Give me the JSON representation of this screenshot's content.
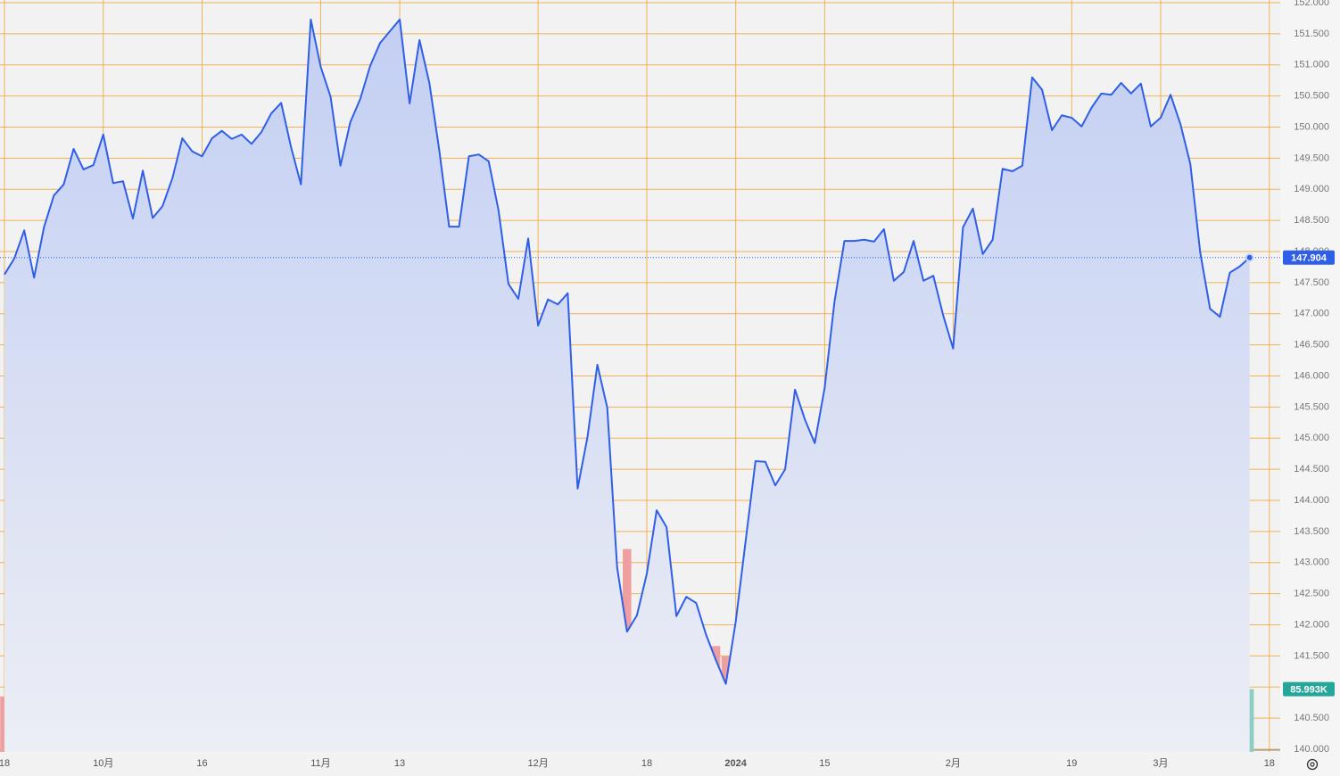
{
  "chart_data": {
    "type": "line",
    "color": "#2f5fe6",
    "grid": true,
    "grid_color": "#f0a73a",
    "x": [
      0,
      1,
      2,
      3,
      4,
      5,
      6,
      7,
      8,
      9,
      10,
      11,
      12,
      13,
      14,
      15,
      16,
      17,
      18,
      19,
      20,
      21,
      22,
      23,
      24,
      25,
      26,
      27,
      28,
      29,
      30,
      31,
      32,
      33,
      34,
      35,
      36,
      37,
      38,
      39,
      40,
      41,
      42,
      43,
      44,
      45,
      46,
      47,
      48,
      49,
      50,
      51,
      52,
      53,
      54,
      55,
      56,
      57,
      58,
      59,
      60,
      61,
      62,
      63,
      64,
      65,
      66,
      67,
      68,
      69,
      70,
      71,
      72,
      73,
      74,
      75,
      76,
      77,
      78,
      79,
      80,
      81,
      82,
      83,
      84,
      85,
      86,
      87,
      88,
      89,
      90,
      91,
      92,
      93,
      94,
      95,
      96,
      97,
      98,
      99,
      100,
      101,
      102,
      103,
      104,
      105,
      106,
      107,
      108,
      109,
      110,
      111,
      112,
      113,
      114,
      115,
      116,
      117,
      118,
      119,
      120,
      121,
      122,
      123,
      124,
      125,
      126
    ],
    "values": [
      147.63,
      147.89,
      148.34,
      147.58,
      148.39,
      148.9,
      149.08,
      149.65,
      149.32,
      149.39,
      149.88,
      149.1,
      149.13,
      148.53,
      149.3,
      148.54,
      148.73,
      149.18,
      149.82,
      149.61,
      149.53,
      149.82,
      149.94,
      149.81,
      149.88,
      149.73,
      149.92,
      150.22,
      150.39,
      149.68,
      149.08,
      151.73,
      150.97,
      150.49,
      149.38,
      150.08,
      150.45,
      150.98,
      151.35,
      151.54,
      151.73,
      150.38,
      151.4,
      150.71,
      149.63,
      148.4,
      148.4,
      149.53,
      149.56,
      149.45,
      148.66,
      147.48,
      147.24,
      148.21,
      146.81,
      147.23,
      147.15,
      147.33,
      144.19,
      145.02,
      146.18,
      145.49,
      142.92,
      141.89,
      142.15,
      142.82,
      143.84,
      143.57,
      142.14,
      142.45,
      142.35,
      141.84,
      141.43,
      141.05,
      142.05,
      143.34,
      144.63,
      144.62,
      144.24,
      144.5,
      145.78,
      145.3,
      144.92,
      145.81,
      147.2,
      148.17,
      148.17,
      148.19,
      148.16,
      148.36,
      147.53,
      147.67,
      148.17,
      147.53,
      147.61,
      146.97,
      146.44,
      148.39,
      148.69,
      147.96,
      148.19,
      149.33,
      149.29,
      149.38,
      150.8,
      150.6,
      149.95,
      150.19,
      150.15,
      150.01,
      150.31,
      150.54,
      150.52,
      150.71,
      150.54,
      150.7,
      150.01,
      150.15,
      150.52,
      150.05,
      149.41,
      147.99,
      147.08,
      146.95,
      147.66,
      147.76,
      147.904
    ],
    "xlim": [
      -0.45,
      129.1
    ],
    "xticks": [
      {
        "value": 0,
        "label": "18"
      },
      {
        "value": 10,
        "label": "10月"
      },
      {
        "value": 20,
        "label": "16"
      },
      {
        "value": 32,
        "label": "11月"
      },
      {
        "value": 40,
        "label": "13"
      },
      {
        "value": 54,
        "label": "12月"
      },
      {
        "value": 65,
        "label": "18"
      },
      {
        "value": 74,
        "label": "2024"
      },
      {
        "value": 83,
        "label": "15"
      },
      {
        "value": 96,
        "label": "2月"
      },
      {
        "value": 108,
        "label": "19"
      },
      {
        "value": 117,
        "label": "3月"
      },
      {
        "value": 128,
        "label": "18"
      }
    ],
    "ylim": [
      139.957,
      152.043
    ],
    "yticks": [
      {
        "value": 140,
        "label": "140.000"
      },
      {
        "value": 140.5,
        "label": "140.500"
      },
      {
        "value": 141,
        "label": "141.000"
      },
      {
        "value": 141.5,
        "label": "141.500"
      },
      {
        "value": 142,
        "label": "142.000"
      },
      {
        "value": 142.5,
        "label": "142.500"
      },
      {
        "value": 143,
        "label": "143.000"
      },
      {
        "value": 143.5,
        "label": "143.500"
      },
      {
        "value": 144,
        "label": "144.000"
      },
      {
        "value": 144.5,
        "label": "144.500"
      },
      {
        "value": 145,
        "label": "145.000"
      },
      {
        "value": 145.5,
        "label": "145.500"
      },
      {
        "value": 146,
        "label": "146.000"
      },
      {
        "value": 146.5,
        "label": "146.500"
      },
      {
        "value": 147,
        "label": "147.000"
      },
      {
        "value": 147.5,
        "label": "147.500"
      },
      {
        "value": 148,
        "label": "148.000"
      },
      {
        "value": 148.5,
        "label": "148.500"
      },
      {
        "value": 149,
        "label": "149.000"
      },
      {
        "value": 149.5,
        "label": "149.500"
      },
      {
        "value": 150,
        "label": "150.000"
      },
      {
        "value": 150.5,
        "label": "150.500"
      },
      {
        "value": 151,
        "label": "151.000"
      },
      {
        "value": 151.5,
        "label": "151.500"
      },
      {
        "value": 152,
        "label": "152.000"
      }
    ],
    "y2lim": [
      0,
      1030
    ],
    "volume": {
      "type": "bar",
      "axis": "y2",
      "up_color": "#8ecdc6",
      "down_color": "#ef9f9f",
      "label_color": "#26a69a",
      "values": [
        76,
        81,
        108,
        106,
        107,
        85,
        91,
        91,
        108,
        113,
        93,
        119,
        111,
        119,
        124,
        92,
        117,
        117,
        112,
        104,
        85,
        93,
        87,
        115,
        88,
        76,
        85,
        72,
        112,
        90,
        86,
        133,
        113,
        104,
        102,
        85,
        86,
        88,
        103,
        90,
        76,
        102,
        106,
        98,
        114,
        130,
        134,
        131,
        77,
        100,
        125,
        146,
        172,
        165,
        168,
        176,
        162,
        130,
        228,
        251,
        168,
        158,
        199,
        278,
        172,
        151,
        197,
        162,
        179,
        155,
        76,
        112,
        145,
        131,
        144,
        163,
        162,
        190,
        156,
        162,
        144,
        193,
        172,
        109,
        193,
        190,
        177,
        160,
        154,
        176,
        177,
        171,
        151,
        136,
        143,
        230,
        217,
        173,
        163,
        150,
        150,
        156,
        141,
        128,
        150,
        144,
        152,
        134,
        80,
        141,
        131,
        160,
        118,
        133,
        112,
        125,
        167,
        157,
        108,
        136,
        145,
        187,
        184,
        130,
        162,
        128,
        85.993
      ],
      "value_labels": [
        null,
        null,
        null,
        null,
        null,
        null,
        null,
        null,
        null,
        null,
        null,
        null,
        null,
        null,
        null,
        null,
        null,
        null,
        null,
        null,
        null,
        null,
        null,
        null,
        null,
        null,
        null,
        null,
        null,
        null,
        null,
        null,
        null,
        null,
        null,
        null,
        null,
        null,
        null,
        null,
        null,
        null,
        null,
        null,
        null,
        null,
        null,
        null,
        null,
        null,
        null,
        null,
        null,
        null,
        null,
        null,
        null,
        null,
        null,
        null,
        null,
        null,
        null,
        null,
        null,
        null,
        null,
        null,
        null,
        null,
        null,
        null,
        null,
        null,
        null,
        null,
        null,
        null,
        null,
        null,
        null,
        null,
        null,
        null,
        null,
        null,
        null,
        null,
        null,
        null,
        null,
        null,
        null,
        null,
        null,
        null,
        null,
        null,
        null,
        null,
        null,
        null,
        null,
        null,
        null,
        null,
        null,
        null,
        null,
        null,
        null,
        null,
        null,
        null,
        null,
        null,
        null,
        null,
        null,
        null,
        null,
        null,
        null,
        null,
        null,
        null,
        "85.993K"
      ]
    }
  }
}
